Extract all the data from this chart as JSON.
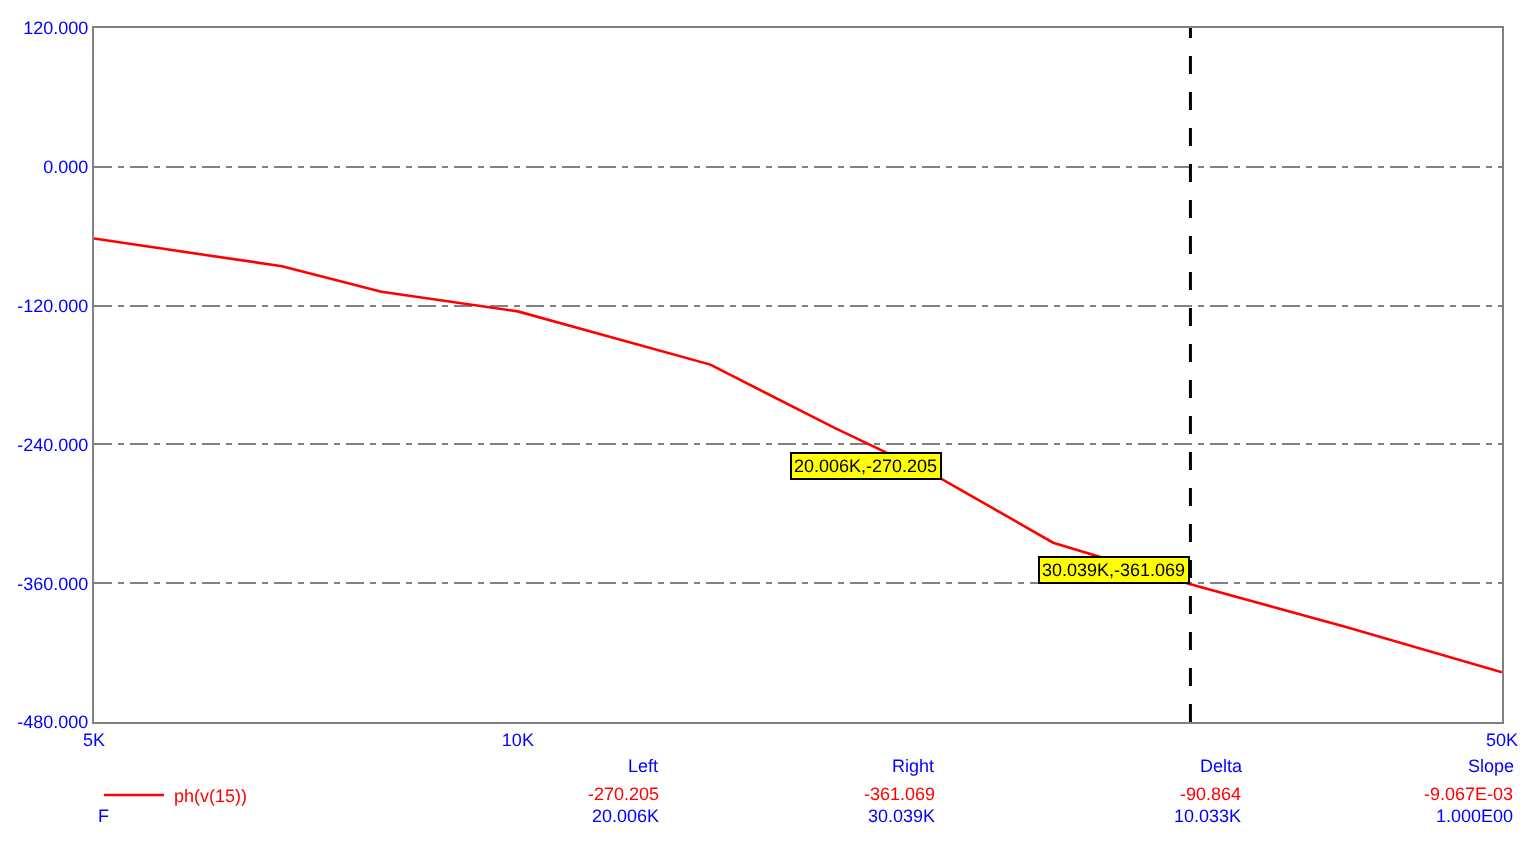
{
  "chart_data": {
    "type": "line",
    "log": "x",
    "x": [
      5000,
      6800,
      8000,
      10000,
      13700,
      16800,
      20006,
      24000,
      30039,
      38800,
      50000
    ],
    "series": [
      {
        "name": "ph(v(15))",
        "color": "#ff0000",
        "values": [
          -62,
          -86,
          -108,
          -125,
          -171,
          -226,
          -270,
          -325,
          -361,
          -398,
          -437
        ]
      }
    ],
    "xlim": [
      5000,
      50000
    ],
    "xticks": [
      {
        "value": 5000,
        "label": "5K"
      },
      {
        "value": 10000,
        "label": "10K"
      },
      {
        "value": 50000,
        "label": "50K"
      }
    ],
    "ylim": [
      -480,
      120
    ],
    "yticks": [
      {
        "value": 120,
        "label": "120.000"
      },
      {
        "value": 0,
        "label": "0.000"
      },
      {
        "value": -120,
        "label": "-120.000"
      },
      {
        "value": -240,
        "label": "-240.000"
      },
      {
        "value": -360,
        "label": "-360.000"
      },
      {
        "value": -480,
        "label": "-480.000"
      }
    ],
    "grid": "y",
    "legend": "bottom left",
    "marker": "none",
    "line_style": "solid",
    "ref_lines": [
      {
        "axis": "x",
        "value": 30039,
        "label": null,
        "color": "#000000",
        "line_style": "dashed"
      }
    ],
    "annotations": [
      {
        "text": "20.006K,-270.205",
        "x": 20006,
        "y": -270.205
      },
      {
        "text": "30.039K,-361.069",
        "x": 30039,
        "y": -361.069
      },
      "Left",
      "Right",
      "Delta",
      "Slope",
      "-270.205",
      "-361.069",
      "-90.864",
      "-9.067E-03",
      "F",
      "20.006K",
      "30.039K",
      "10.033K",
      "1.000E00"
    ]
  }
}
